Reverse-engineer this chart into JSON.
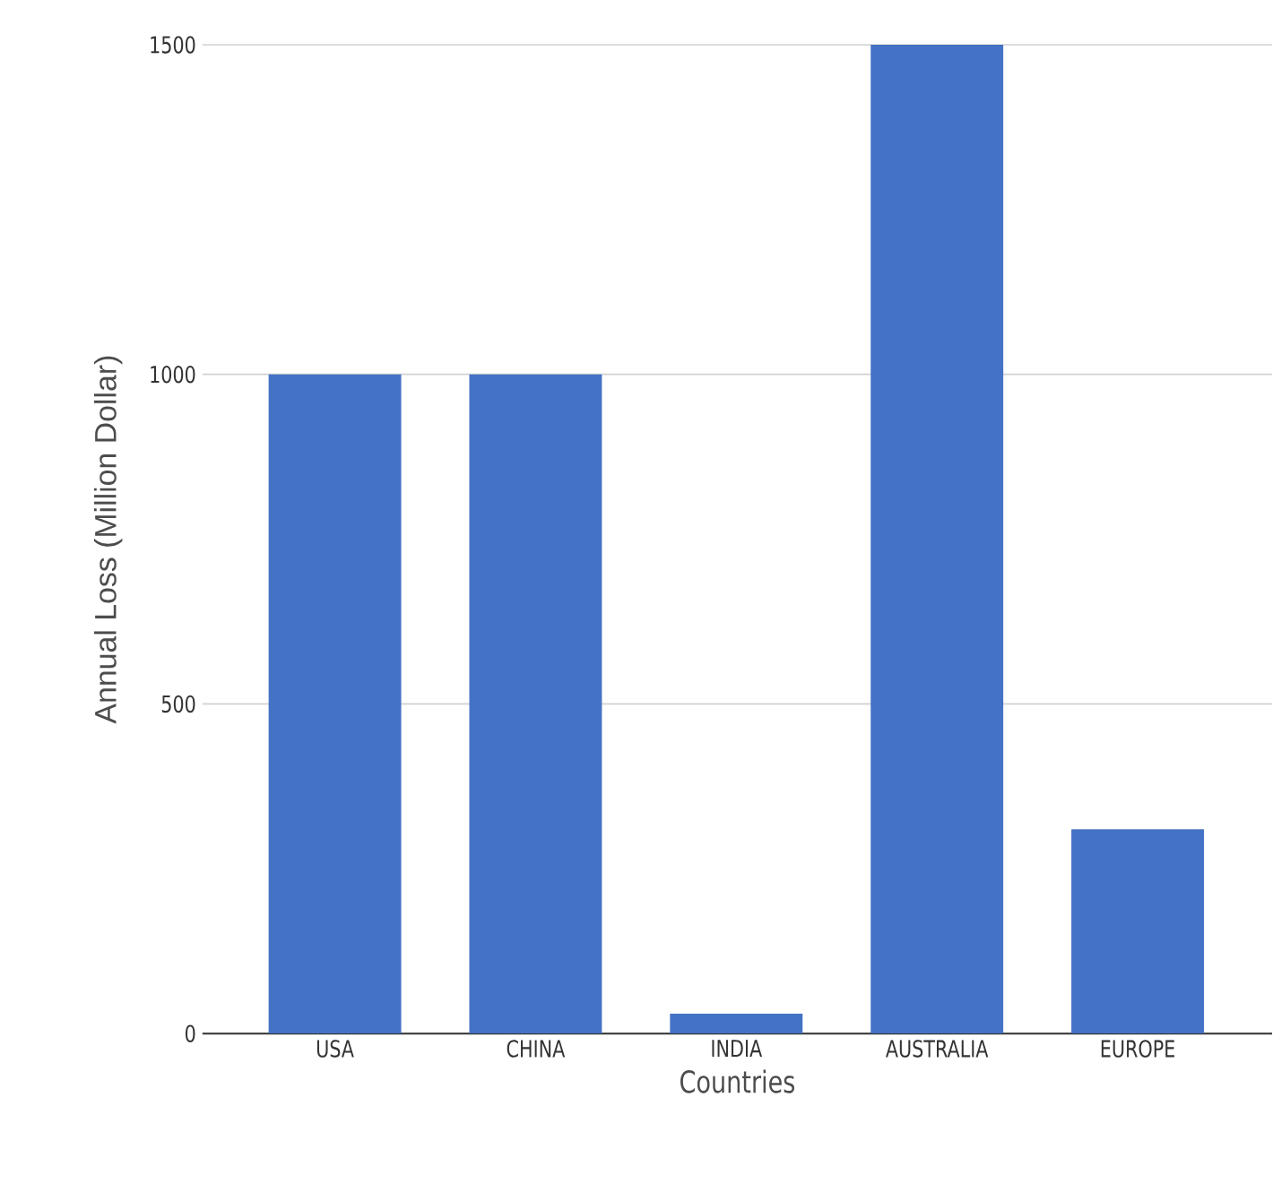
{
  "chart_data": {
    "type": "bar",
    "xlabel": "Countries",
    "ylabel": "Annual Loss (Million Dollar)",
    "categories": [
      "USA",
      "CHINA",
      "INDIA",
      "AUSTRALIA",
      "EUROPE"
    ],
    "values": [
      1000,
      1000,
      30,
      1500,
      310
    ],
    "color": "#4472c4",
    "ylim": [
      0,
      1500
    ],
    "yticks": [
      0,
      500,
      1000,
      1500
    ],
    "grid": "y"
  }
}
